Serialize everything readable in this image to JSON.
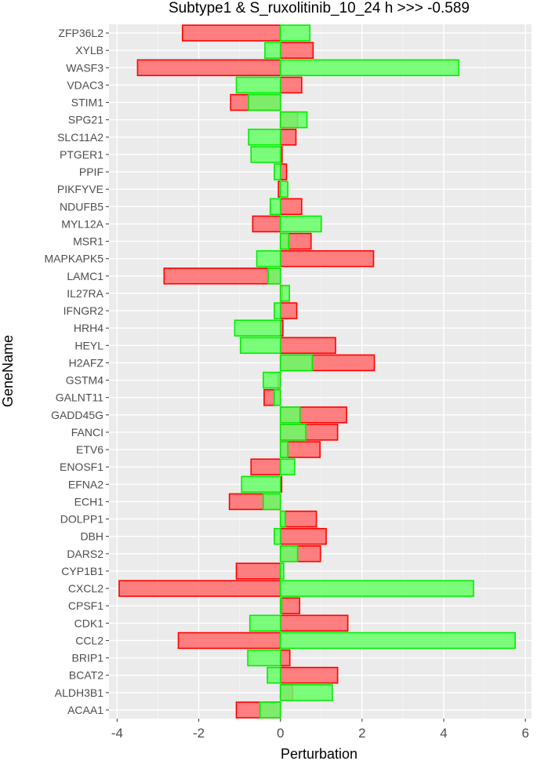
{
  "chart_data": {
    "type": "bar",
    "orientation": "horizontal",
    "title": "Subtype1 & S_ruxolitinib_10_24 h  >>>  -0.589",
    "xlabel": "Perturbation",
    "ylabel": "GeneName",
    "xlim": [
      -4.2,
      6.15
    ],
    "xticks": [
      -4,
      -2,
      0,
      2,
      4,
      6
    ],
    "grid": true,
    "background": "#ebebeb",
    "categories": [
      "ZFP36L2",
      "XYLB",
      "WASF3",
      "VDAC3",
      "STIM1",
      "SPG21",
      "SLC11A2",
      "PTGER1",
      "PPIF",
      "PIKFYVE",
      "NDUFB5",
      "MYL12A",
      "MSR1",
      "MAPKAPK5",
      "LAMC1",
      "IL27RA",
      "IFNGR2",
      "HRH4",
      "HEYL",
      "H2AFZ",
      "GSTM4",
      "GALNT11",
      "GADD45G",
      "FANCI",
      "ETV6",
      "ENOSF1",
      "EFNA2",
      "ECH1",
      "DOLPP1",
      "DBH",
      "DARS2",
      "CYP1B1",
      "CXCL2",
      "CPSF1",
      "CDK1",
      "CCL2",
      "BRIP1",
      "BCAT2",
      "ALDH3B1",
      "ACAA1"
    ],
    "series": [
      {
        "color": "#ff0000",
        "fill": "#ff6b6b",
        "values": [
          -2.4,
          0.8,
          -3.5,
          0.52,
          -1.22,
          0.42,
          0.38,
          0.04,
          0.15,
          -0.05,
          0.52,
          -0.68,
          0.75,
          2.28,
          -2.85,
          0.05,
          0.4,
          0.06,
          1.35,
          2.3,
          -0.06,
          -0.4,
          1.62,
          1.4,
          0.97,
          -0.72,
          0.03,
          -1.25,
          0.88,
          1.12,
          0.98,
          -1.08,
          -3.95,
          0.47,
          1.65,
          -2.5,
          0.23,
          1.4,
          0.3,
          -1.08
        ]
      },
      {
        "color": "#00ee00",
        "fill": "#66ff66",
        "values": [
          0.72,
          -0.38,
          4.37,
          -1.08,
          -0.78,
          0.65,
          -0.78,
          -0.72,
          -0.15,
          0.18,
          -0.25,
          1.0,
          0.2,
          -0.58,
          -0.3,
          0.22,
          -0.15,
          -1.12,
          -0.98,
          0.78,
          -0.42,
          -0.15,
          0.48,
          0.62,
          0.18,
          0.35,
          -0.95,
          -0.42,
          0.12,
          -0.15,
          0.42,
          0.08,
          4.73,
          0.03,
          -0.75,
          5.75,
          -0.8,
          -0.32,
          1.27,
          -0.5
        ]
      }
    ]
  }
}
